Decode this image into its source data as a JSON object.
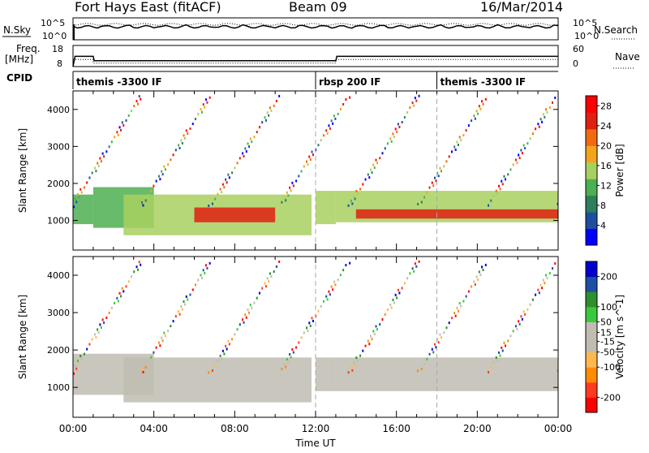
{
  "header": {
    "site": "Fort Hays East (fitACF)",
    "beam": "Beam 09",
    "date": "16/Mar/2014"
  },
  "strip": {
    "nsky_label": "N.Sky",
    "nsky_ticks": [
      "10^5",
      "10^0"
    ],
    "nsearch_label": "N.Search",
    "nsearch_ticks": [
      "10^5",
      "10^0"
    ],
    "freq_label": "Freq.",
    "freq_unit": "[MHz]",
    "freq_ticks": [
      "18",
      "8"
    ],
    "nave_label": "Nave",
    "nave_ticks": [
      "60",
      "0"
    ],
    "cpid_label": "CPID",
    "modes": [
      {
        "start_hour": 0,
        "name": "themis -3300 IF"
      },
      {
        "start_hour": 12,
        "name": "rbsp 200 IF"
      },
      {
        "start_hour": 18,
        "name": "themis -3300 IF"
      }
    ],
    "freq_series": {
      "hours": [
        0,
        0.1,
        1.0,
        1.05,
        13.0,
        13.05,
        24
      ],
      "mhz": [
        8,
        15,
        15,
        12,
        12,
        15,
        15
      ]
    },
    "nave_series": {
      "hours": [
        0,
        1.0,
        13.0,
        24
      ],
      "value": [
        20,
        10,
        20,
        20
      ]
    }
  },
  "chart_data": [
    {
      "type": "heatmap",
      "title": "",
      "xlabel": "Time UT",
      "ylabel": "Slant Range [km]",
      "x_ticks": [
        "00:00",
        "04:00",
        "08:00",
        "12:00",
        "16:00",
        "20:00",
        "00:00"
      ],
      "xlim_hours": [
        0,
        24
      ],
      "y_ticks": [
        1000,
        2000,
        3000,
        4000
      ],
      "ylim": [
        200,
        4500
      ],
      "colorbar": {
        "label": "Power [dB]",
        "ticks": [
          4,
          8,
          12,
          16,
          20,
          24,
          28
        ],
        "range": [
          0,
          30
        ],
        "colors": [
          "#0000ff",
          "#1d4fa0",
          "#2e7d5b",
          "#4caf50",
          "#a8d060",
          "#f2a51a",
          "#f26a10",
          "#e02010",
          "#ff0000"
        ]
      },
      "regions": [
        {
          "h0": 0.0,
          "h1": 1.0,
          "r0": 900,
          "r1": 1700,
          "level": 12
        },
        {
          "h0": 1.0,
          "h1": 4.0,
          "r0": 800,
          "r1": 1900,
          "level": 10
        },
        {
          "h0": 2.5,
          "h1": 11.8,
          "r0": 600,
          "r1": 1700,
          "level": 14
        },
        {
          "h0": 6.0,
          "h1": 10.0,
          "r0": 950,
          "r1": 1350,
          "level": 26
        },
        {
          "h0": 12.0,
          "h1": 13.0,
          "r0": 900,
          "r1": 1800,
          "level": 16
        },
        {
          "h0": 13.0,
          "h1": 24.0,
          "r0": 950,
          "r1": 1800,
          "level": 16
        },
        {
          "h0": 14.0,
          "h1": 24.0,
          "r0": 1050,
          "r1": 1300,
          "level": 24
        }
      ]
    },
    {
      "type": "heatmap",
      "title": "",
      "xlabel": "Time UT",
      "ylabel": "Slant Range [km]",
      "x_ticks": [
        "00:00",
        "04:00",
        "08:00",
        "12:00",
        "16:00",
        "20:00",
        "00:00"
      ],
      "xlim_hours": [
        0,
        24
      ],
      "y_ticks": [
        1000,
        2000,
        3000,
        4000
      ],
      "ylim": [
        200,
        4500
      ],
      "colorbar": {
        "label": "Velocity [m s^-1]",
        "ticks": [
          200,
          100,
          50,
          15,
          -15,
          -50,
          -100,
          -200
        ],
        "range": [
          -250,
          250
        ],
        "colors": [
          "#ff0000",
          "#ff3b1f",
          "#ff8c00",
          "#ffb84d",
          "#c0bcb2",
          "#c0bcb2",
          "#3cc83c",
          "#2d8f2d",
          "#1f4fa0",
          "#0000cc"
        ]
      },
      "regions": [
        {
          "h0": 0.0,
          "h1": 4.0,
          "r0": 800,
          "r1": 1900,
          "level": 0
        },
        {
          "h0": 2.5,
          "h1": 11.8,
          "r0": 600,
          "r1": 1800,
          "level": 40
        },
        {
          "h0": 12.0,
          "h1": 13.0,
          "r0": 900,
          "r1": 1800,
          "level": 40
        },
        {
          "h0": 13.0,
          "h1": 24.0,
          "r0": 900,
          "r1": 1800,
          "level": 0
        }
      ]
    }
  ]
}
